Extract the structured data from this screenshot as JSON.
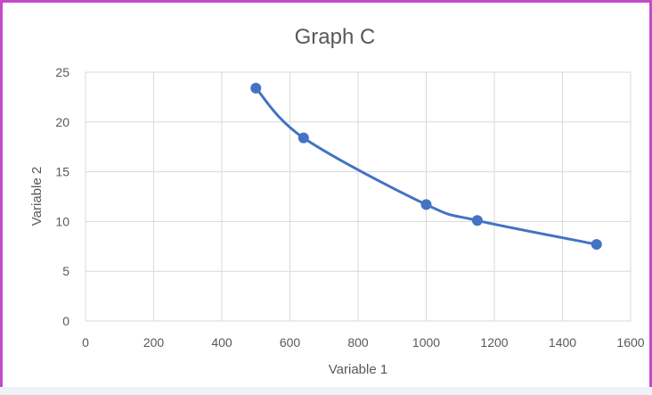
{
  "chart_data": {
    "type": "line",
    "title": "Graph C",
    "xlabel": "Variable 1",
    "ylabel": "Variable 2",
    "xlim": [
      0,
      1600
    ],
    "ylim": [
      0,
      25
    ],
    "x_ticks": [
      0,
      200,
      400,
      600,
      800,
      1000,
      1200,
      1400,
      1600
    ],
    "y_ticks": [
      0,
      5,
      10,
      15,
      20,
      25
    ],
    "grid": true,
    "smooth": true,
    "markers": true,
    "series": [
      {
        "color": "#4472c4",
        "x": [
          500,
          640,
          1000,
          1150,
          1500
        ],
        "y": [
          23.4,
          18.4,
          11.7,
          10.1,
          7.7
        ]
      }
    ]
  }
}
